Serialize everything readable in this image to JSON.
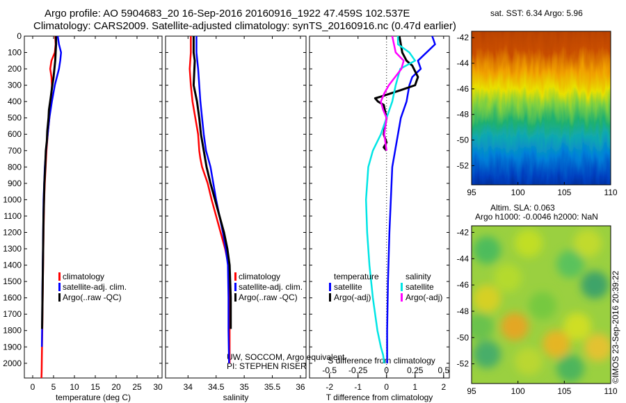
{
  "header": {
    "title_line1": "Argo profile: AO 5904683_20 16-Sep-2016 20160916_1922 47.459S 102.537E",
    "title_line2": "Climatology: CARS2009. Satellite-adjusted climatology: synTS_20160916.nc (0.47d earlier)"
  },
  "footer": {
    "credit_line1": "UW, SOCCOM, Argo equivalent",
    "credit_line2": "PI: STEPHEN RISER",
    "imos_stamp": "©IMOS 23-Sep-2016 20:39:22"
  },
  "colors": {
    "climatology": "#ff0000",
    "satellite_adj": "#0000ff",
    "argo": "#000000",
    "salinity_satellite": "#00e5e5",
    "salinity_argo": "#ff00ff",
    "zero_line": "#000000"
  },
  "chart_data": [
    {
      "type": "line",
      "id": "temperature_profile",
      "xlabel": "temperature (deg C)",
      "ylabel": "",
      "xlim": [
        -2,
        31
      ],
      "ylim": [
        2090,
        0
      ],
      "y_inverted": true,
      "xticks": [
        "0",
        "5",
        "10",
        "15",
        "20",
        "25",
        "30"
      ],
      "yticks": [
        "0",
        "100",
        "200",
        "300",
        "400",
        "500",
        "600",
        "700",
        "800",
        "900",
        "1000",
        "1100",
        "1200",
        "1300",
        "1400",
        "1500",
        "1600",
        "1700",
        "1800",
        "1900",
        "2000"
      ],
      "legend": [
        "climatology",
        "satellite-adj. clim.",
        "Argo(..raw -QC)"
      ],
      "series": [
        {
          "name": "climatology",
          "color": "#ff0000",
          "x": [
            5.4,
            5.5,
            5.3,
            4.5,
            4.2,
            4.5,
            4.6,
            4.5,
            4.3,
            4.0,
            3.6,
            3.3,
            3.1,
            2.9,
            2.75,
            2.6,
            2.5,
            2.4,
            2.3,
            2.2,
            2.15,
            2.1
          ],
          "y": [
            0,
            50,
            100,
            150,
            200,
            250,
            300,
            350,
            400,
            500,
            600,
            700,
            800,
            900,
            1000,
            1200,
            1400,
            1600,
            1800,
            1950,
            2050,
            2090
          ]
        },
        {
          "name": "satellite-adj. clim.",
          "color": "#0000ff",
          "x": [
            6.0,
            6.3,
            6.8,
            6.6,
            6.3,
            5.8,
            5.3,
            4.6,
            4.0,
            3.6,
            3.2,
            2.9,
            2.75,
            2.6,
            2.5,
            2.4,
            2.3,
            2.25,
            2.2
          ],
          "y": [
            0,
            50,
            100,
            150,
            200,
            250,
            300,
            400,
            500,
            600,
            700,
            800,
            900,
            1000,
            1200,
            1400,
            1600,
            1800,
            1900
          ]
        },
        {
          "name": "Argo(..raw -QC)",
          "color": "#000000",
          "x": [
            5.6,
            5.6,
            5.5,
            5.4,
            5.2,
            5.0,
            4.6,
            4.3,
            3.9,
            3.8,
            3.5,
            3.4,
            3.15,
            3.0,
            2.8,
            2.6,
            2.5,
            2.4,
            2.3,
            2.25
          ],
          "y": [
            0,
            50,
            100,
            150,
            200,
            250,
            320,
            380,
            450,
            500,
            580,
            640,
            700,
            800,
            900,
            1100,
            1300,
            1500,
            1700,
            1790
          ]
        }
      ]
    },
    {
      "type": "line",
      "id": "salinity_profile",
      "xlabel": "salinity",
      "xlim": [
        33.6,
        36.1
      ],
      "ylim": [
        2090,
        0
      ],
      "y_inverted": true,
      "xticks": [
        "34",
        "34.5",
        "35",
        "35.5",
        "36"
      ],
      "legend": [
        "climatology",
        "satellite-adj. clim.",
        "Argo(..raw -QC)"
      ],
      "series": [
        {
          "name": "climatology",
          "color": "#ff0000",
          "x": [
            34.05,
            34.05,
            34.03,
            34.05,
            34.08,
            34.13,
            34.18,
            34.2,
            34.22,
            34.25,
            34.3,
            34.35,
            34.42,
            34.5,
            34.58,
            34.66,
            34.72,
            34.74,
            34.74,
            34.74
          ],
          "y": [
            0,
            100,
            200,
            300,
            400,
            500,
            600,
            700,
            750,
            800,
            850,
            900,
            1000,
            1100,
            1200,
            1300,
            1400,
            1600,
            1800,
            2000
          ]
        },
        {
          "name": "satellite-adj. clim.",
          "color": "#0000ff",
          "x": [
            34.15,
            34.15,
            34.18,
            34.2,
            34.22,
            34.25,
            34.28,
            34.32,
            34.36,
            34.4,
            34.45,
            34.5,
            34.56,
            34.62,
            34.67,
            34.71,
            34.72,
            34.72,
            34.73
          ],
          "y": [
            0,
            100,
            200,
            300,
            400,
            500,
            600,
            700,
            750,
            800,
            900,
            1000,
            1100,
            1200,
            1300,
            1400,
            1600,
            1800,
            2000
          ]
        },
        {
          "name": "Argo(..raw -QC)",
          "color": "#000000",
          "x": [
            34.1,
            34.1,
            34.12,
            34.1,
            34.16,
            34.2,
            34.23,
            34.28,
            34.33,
            34.4,
            34.48,
            34.56,
            34.64,
            34.7,
            34.74,
            34.76,
            34.76
          ],
          "y": [
            0,
            100,
            150,
            300,
            400,
            500,
            600,
            700,
            800,
            900,
            1000,
            1100,
            1200,
            1300,
            1400,
            1600,
            1790
          ]
        }
      ]
    },
    {
      "type": "line",
      "id": "difference_profile",
      "xlabel": "T difference from climatology",
      "x2label": "S difference from climatology",
      "xlim": [
        -2.7,
        2.2
      ],
      "x2lim": [
        -0.675,
        0.55
      ],
      "ylim": [
        2090,
        0
      ],
      "y_inverted": true,
      "xticks": [
        "-2",
        "-1",
        "0",
        "1",
        "2"
      ],
      "x2ticks": [
        "-0.5",
        "-0.25",
        "0",
        "0.25",
        "0.5"
      ],
      "legend_temperature_title": "temperature",
      "legend_salinity_title": "salinity",
      "legend": [
        "satellite",
        "Argo(-adj)",
        "satellite",
        "Argo(-adj)"
      ],
      "series": [
        {
          "name": "satellite",
          "group": "temperature",
          "color": "#0000ff",
          "x": [
            1.6,
            1.7,
            1.4,
            1.1,
            1.2,
            0.9,
            0.8,
            0.7,
            0.5,
            0.4,
            0.3,
            0.2,
            0.15,
            0.1,
            0.05,
            0.02,
            0.02
          ],
          "y": [
            0,
            50,
            100,
            150,
            200,
            250,
            300,
            400,
            500,
            600,
            700,
            800,
            1000,
            1200,
            1500,
            1800,
            2000
          ]
        },
        {
          "name": "Argo(-adj)",
          "group": "temperature",
          "color": "#000000",
          "x": [
            0.45,
            0.55,
            0.7,
            0.9,
            1.1,
            1.0,
            0.5,
            -0.2,
            -0.4,
            -0.3,
            -0.1,
            0.0,
            -0.1,
            0.0,
            -0.1,
            0.0
          ],
          "y": [
            0,
            100,
            150,
            180,
            250,
            300,
            330,
            370,
            380,
            400,
            420,
            500,
            600,
            650,
            680,
            700
          ]
        },
        {
          "name": "satellite",
          "group": "salinity",
          "color": "#00e5e5",
          "x": [
            0.1,
            0.1,
            0.2,
            0.25,
            0.12,
            0.08,
            0.05,
            0.0,
            -0.05,
            -0.12,
            -0.16,
            -0.18,
            -0.17,
            -0.15,
            -0.12,
            -0.08,
            -0.05,
            -0.03,
            -0.02
          ],
          "y": [
            0,
            50,
            100,
            150,
            200,
            300,
            400,
            500,
            600,
            700,
            800,
            1000,
            1200,
            1400,
            1600,
            1800,
            1900,
            1950,
            2000
          ]
        },
        {
          "name": "Argo(-adj)",
          "group": "salinity",
          "color": "#ff00ff",
          "x": [
            0.05,
            0.08,
            0.15,
            0.13,
            0.02,
            -0.02,
            -0.05,
            -0.03,
            0.0,
            -0.02,
            0.0
          ],
          "y": [
            0,
            100,
            150,
            200,
            300,
            350,
            400,
            450,
            500,
            600,
            700
          ]
        }
      ]
    },
    {
      "type": "heatmap",
      "id": "sst_map",
      "title": "sat. SST: 6.34 Argo: 5.96",
      "xlim": [
        95,
        110
      ],
      "ylim": [
        -53.5,
        -41.5
      ],
      "xticks": [
        "95",
        "100",
        "105",
        "110"
      ],
      "yticks": [
        "-42",
        "-44",
        "-46",
        "-48",
        "-50",
        "-52"
      ]
    },
    {
      "type": "heatmap",
      "id": "sla_map",
      "title_line1": "Altim. SLA: 0.063",
      "title_line2": "Argo h1000: -0.0046 h2000: NaN",
      "xlim": [
        95,
        110
      ],
      "ylim": [
        -53.5,
        -41.5
      ],
      "xticks": [
        "95",
        "100",
        "105",
        "110"
      ],
      "yticks": [
        "-42",
        "-44",
        "-46",
        "-48",
        "-50",
        "-52"
      ]
    }
  ]
}
